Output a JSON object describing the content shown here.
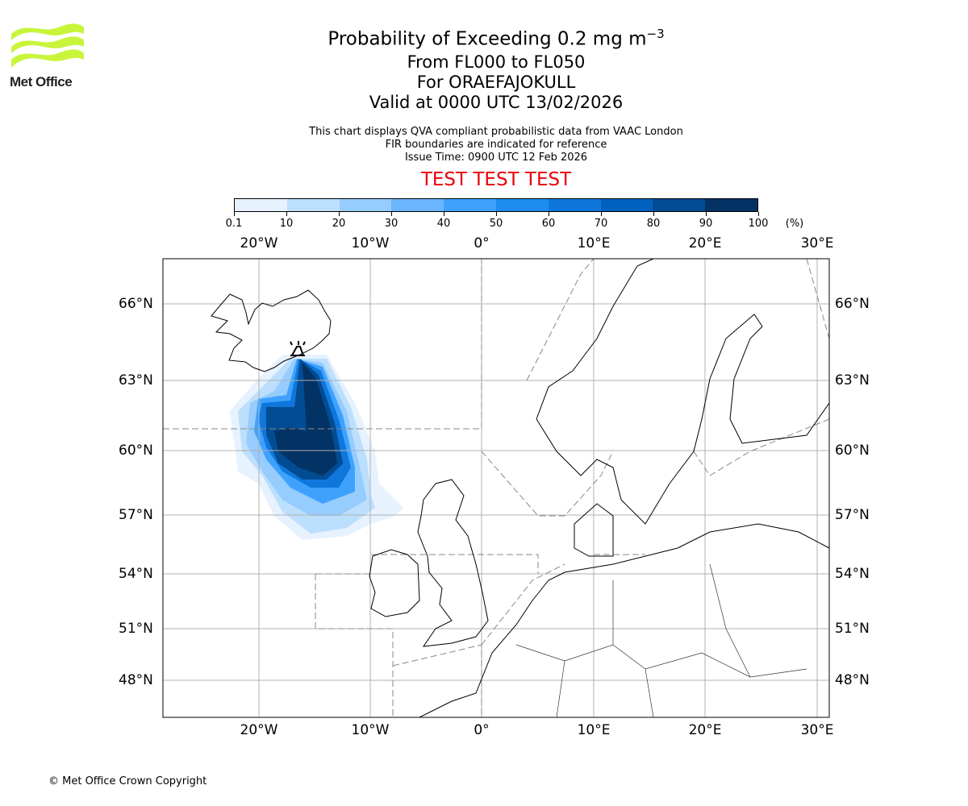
{
  "logo": {
    "text": "Met Office"
  },
  "title": {
    "main": "Probability of Exceeding 0.2 mg m",
    "main_sup": "−3",
    "levels": "From FL000 to FL050",
    "volcano": "For ORAEFAJOKULL",
    "valid": "Valid at 0000 UTC 13/02/2026"
  },
  "subtitle": {
    "line1": "This chart displays QVA compliant probabilistic data from VAAC London",
    "line2": "FIR boundaries are indicated for reference",
    "line3": "Issue Time: 0900 UTC 12 Feb 2026"
  },
  "banner": "TEST TEST TEST",
  "colorbar": {
    "unit": "(%)",
    "ticks": [
      "0.1",
      "10",
      "20",
      "30",
      "40",
      "50",
      "60",
      "70",
      "80",
      "90",
      "100"
    ],
    "colors": [
      "#e6f2fe",
      "#bcdffd",
      "#96ccfe",
      "#6bb6fd",
      "#3ea2fd",
      "#1f8cf0",
      "#0f77dc",
      "#0062be",
      "#024c93",
      "#033264"
    ]
  },
  "map": {
    "lon_labels": [
      "20°W",
      "10°W",
      "0°",
      "10°E",
      "20°E",
      "30°E"
    ],
    "lat_labels": [
      "66°N",
      "63°N",
      "60°N",
      "57°N",
      "54°N",
      "51°N",
      "48°N"
    ],
    "volcano_marker": "volcano-icon"
  },
  "footer": "© Met Office Crown Copyright"
}
